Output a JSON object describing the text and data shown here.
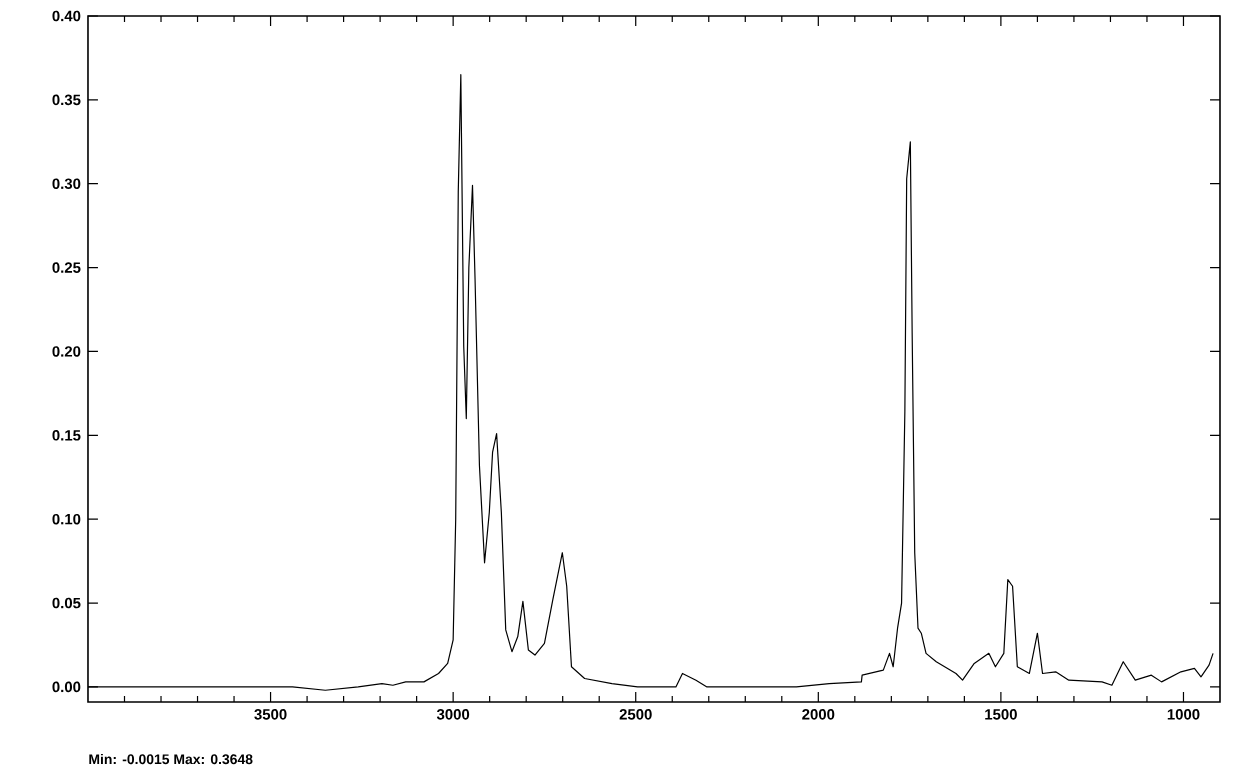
{
  "chart_data": {
    "type": "line",
    "annotations": [
      "Min: -0.0015  Max: 0.3648"
    ],
    "xlim": [
      4000,
      900
    ],
    "ylim": [
      -0.009,
      0.4
    ],
    "xticks": [
      {
        "value": 3900,
        "label": null
      },
      {
        "value": 3800,
        "label": null
      },
      {
        "value": 3700,
        "label": null
      },
      {
        "value": 3600,
        "label": null
      },
      3500,
      {
        "value": 3400,
        "label": null
      },
      {
        "value": 3300,
        "label": null
      },
      {
        "value": 3200,
        "label": null
      },
      {
        "value": 3100,
        "label": null
      },
      3000,
      {
        "value": 2900,
        "label": null
      },
      {
        "value": 2800,
        "label": null
      },
      {
        "value": 2700,
        "label": null
      },
      {
        "value": 2600,
        "label": null
      },
      2500,
      {
        "value": 2400,
        "label": null
      },
      {
        "value": 2300,
        "label": null
      },
      {
        "value": 2200,
        "label": null
      },
      {
        "value": 2100,
        "label": null
      },
      2000,
      {
        "value": 1900,
        "label": null
      },
      {
        "value": 1800,
        "label": null
      },
      {
        "value": 1700,
        "label": null
      },
      {
        "value": 1600,
        "label": null
      },
      1500,
      {
        "value": 1400,
        "label": null
      },
      {
        "value": 1300,
        "label": null
      },
      {
        "value": 1200,
        "label": null
      },
      {
        "value": 1100,
        "label": null
      },
      1000
    ],
    "yticks": [
      {
        "value": 0,
        "label": "0.00"
      },
      {
        "value": 0.05,
        "label": "0.05"
      },
      {
        "value": 0.1,
        "label": "0.10"
      },
      {
        "value": 0.15,
        "label": "0.15"
      },
      {
        "value": 0.2,
        "label": "0.20"
      },
      {
        "value": 0.25,
        "label": "0.25"
      },
      {
        "value": 0.3,
        "label": "0.30"
      },
      {
        "value": 0.35,
        "label": "0.35"
      },
      {
        "value": 0.4,
        "label": "0.40"
      }
    ],
    "grid": false,
    "marker": "none",
    "line_style": "solid",
    "series": [
      {
        "color": "#000000",
        "x": [
          4000,
          3600,
          3440,
          3350,
          3260,
          3195,
          3165,
          3130,
          3080,
          3040,
          3015,
          3000,
          2993,
          2986,
          2979,
          2971,
          2964,
          2957,
          2947,
          2940,
          2928,
          2914,
          2901,
          2892,
          2881,
          2868,
          2856,
          2839,
          2823,
          2809,
          2794,
          2776,
          2750,
          2727,
          2701,
          2689,
          2676,
          2640,
          2565,
          2495,
          2390,
          2372,
          2335,
          2305,
          2060,
          1970,
          1882,
          1880,
          1822,
          1805,
          1795,
          1783,
          1772,
          1763,
          1758,
          1748,
          1743,
          1736,
          1727,
          1718,
          1705,
          1677,
          1623,
          1605,
          1573,
          1533,
          1515,
          1492,
          1481,
          1468,
          1455,
          1422,
          1400,
          1386,
          1350,
          1314,
          1223,
          1196,
          1165,
          1132,
          1088,
          1060,
          1007,
          970,
          952,
          930,
          919
        ],
        "values": [
          0,
          0,
          0,
          -0.002,
          0,
          0.002,
          0.001,
          0.003,
          0.003,
          0.008,
          0.014,
          0.028,
          0.1,
          0.295,
          0.365,
          0.203,
          0.16,
          0.25,
          0.299,
          0.243,
          0.132,
          0.074,
          0.104,
          0.14,
          0.151,
          0.104,
          0.034,
          0.021,
          0.03,
          0.051,
          0.022,
          0.019,
          0.026,
          0.052,
          0.08,
          0.06,
          0.012,
          0.005,
          0.002,
          0,
          0,
          0.008,
          0.004,
          0,
          0,
          0.002,
          0.003,
          0.007,
          0.01,
          0.02,
          0.012,
          0.035,
          0.05,
          0.164,
          0.303,
          0.325,
          0.211,
          0.08,
          0.035,
          0.032,
          0.02,
          0.015,
          0.008,
          0.004,
          0.014,
          0.02,
          0.012,
          0.02,
          0.064,
          0.06,
          0.012,
          0.008,
          0.032,
          0.008,
          0.009,
          0.004,
          0.003,
          0.001,
          0.015,
          0.004,
          0.007,
          0.003,
          0.009,
          0.011,
          0.006,
          0.013,
          0.02
        ]
      }
    ]
  }
}
